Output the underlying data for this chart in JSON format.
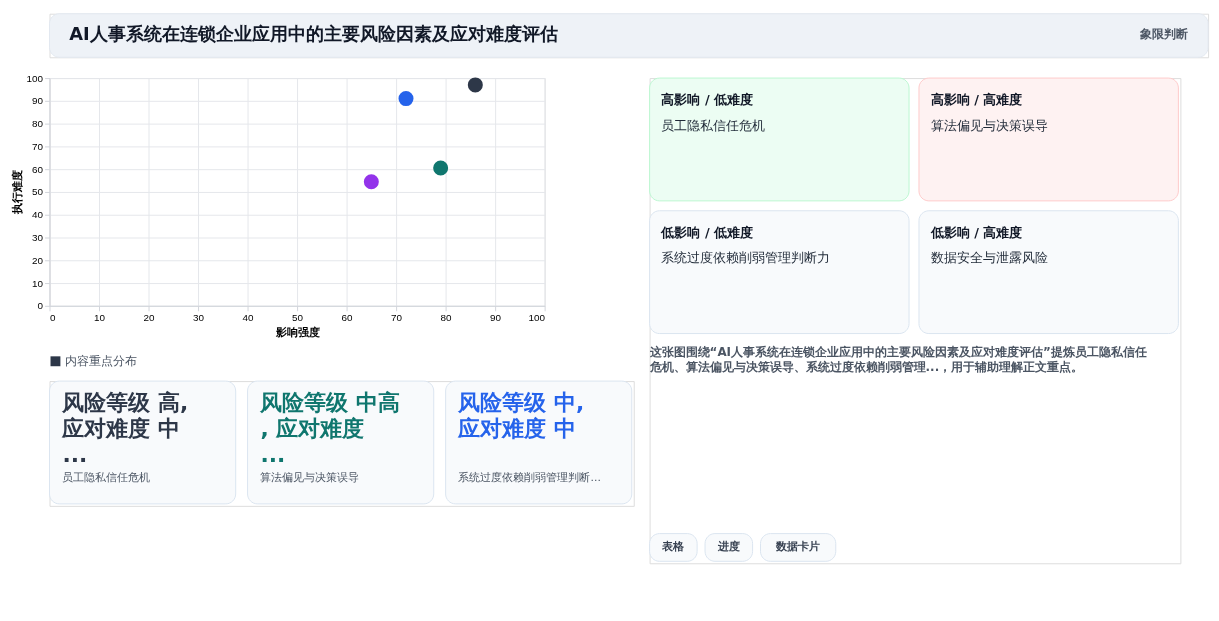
{
  "chart_data": [
    {
      "type": "scatter",
      "xlabel": "影响强度",
      "ylabel": "执行难度",
      "series": [
        {
          "name": "内容重点分布",
          "color": "#2d3748",
          "colors": [
            "#2d3748",
            "#2563eb",
            "#0f766e",
            "#9333ea"
          ],
          "x": [
            86,
            72,
            79,
            65
          ],
          "values": [
            97,
            91,
            60.5,
            54.5
          ]
        }
      ],
      "xlim": [
        0,
        100
      ],
      "xticks": [
        0,
        10,
        20,
        30,
        40,
        50,
        60,
        70,
        80,
        90,
        100
      ],
      "ylim": [
        0,
        100
      ],
      "yticks": [
        0,
        10,
        20,
        30,
        40,
        50,
        60,
        70,
        80,
        90,
        100
      ],
      "grid": true,
      "legend": "bottom",
      "marker": "circle"
    },
    {
      "type": "other",
      "title": "AI人事系统在连锁企业应用中的主要风险因素及应对难度评估",
      "subtitle": "象限判断",
      "annotations": [
        "高影响 / 低难度",
        "高影响 / 高难度",
        "低影响 / 低难度",
        "低影响 / 高难度",
        "员工隐私信任危机",
        "算法偏见与决策误导",
        "系统过度依赖削弱管理判断力",
        "数据安全与泄露风险",
        "这张图围绕“AI人事系统在连锁企业应用中的主要风险因素及应对难度评估”提炼员工隐私信任危机、算法偏见与决策误导、系统过度依赖削弱管理...，用于辅助理解正文重点。",
        "风险等级 高, 应对难度 中...",
        "风险等级 中高, 应对难度 ...",
        "风险等级 中, 应对难度 中",
        "员工隐私信任危机",
        "算法偏见与决策误导",
        "系统过度依赖削弱管理判断...",
        "表格",
        "进度",
        "数据卡片"
      ]
    }
  ]
}
